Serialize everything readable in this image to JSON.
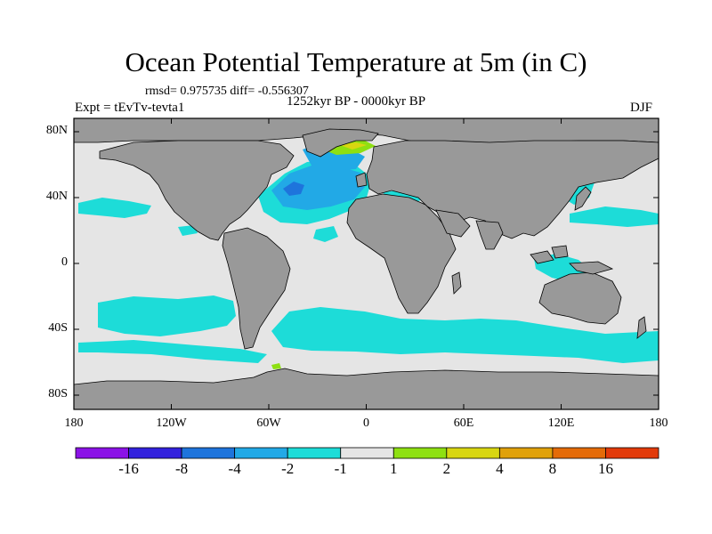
{
  "figure": {
    "title": "Ocean Potential Temperature at 5m (in C)",
    "stats": "rmsd= 0.975735  diff= -0.556307",
    "experiment": "Expt = tEvTv-tevta1",
    "period": "1252kyr BP - 0000kyr BP",
    "season": "DJF"
  },
  "axes": {
    "lat_labels": [
      "80N",
      "40N",
      "0",
      "40S",
      "80S"
    ],
    "lon_labels": [
      "180",
      "120W",
      "60W",
      "0",
      "60E",
      "120E",
      "180"
    ],
    "lat_values": [
      80,
      40,
      0,
      -40,
      -80
    ],
    "lon_values": [
      -180,
      -120,
      -60,
      0,
      60,
      120,
      180
    ]
  },
  "colorbar": {
    "colors": [
      "#8b12e6",
      "#3322dd",
      "#1e74dc",
      "#22a9e6",
      "#1ddcd8",
      "#e5e5e5",
      "#8ee012",
      "#d8d611",
      "#e0a10b",
      "#e46b08",
      "#e23a0a"
    ],
    "labels": [
      "-16",
      "-8",
      "-4",
      "-2",
      "-1",
      "1",
      "2",
      "4",
      "8",
      "16"
    ]
  },
  "map_colors": {
    "land": "#999999",
    "ocean_neutral": "#e5e5e5",
    "cyan": "#1ddcd8",
    "light_blue": "#22a9e6",
    "blue": "#1e74dc",
    "green": "#8ee012",
    "yellow": "#d8d611"
  }
}
